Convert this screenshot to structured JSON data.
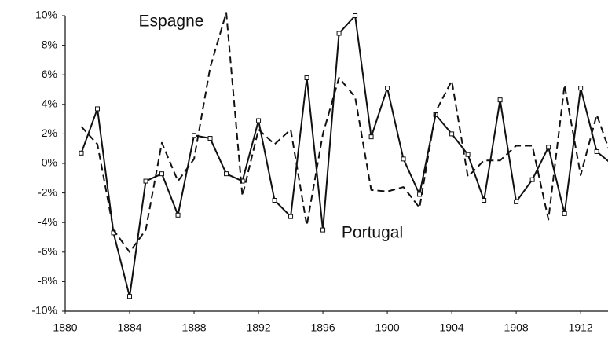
{
  "chart_data": {
    "type": "line",
    "annotations": [
      "Espagne",
      "Portugal"
    ],
    "x": [
      1881,
      1882,
      1883,
      1884,
      1885,
      1886,
      1887,
      1888,
      1889,
      1890,
      1891,
      1892,
      1893,
      1894,
      1895,
      1896,
      1897,
      1898,
      1899,
      1900,
      1901,
      1902,
      1903,
      1904,
      1905,
      1906,
      1907,
      1908,
      1909,
      1910,
      1911,
      1912,
      1913,
      1914
    ],
    "series": [
      {
        "name": "Portugal",
        "color": "#111111",
        "dashed": false,
        "markers": true,
        "values": [
          0.7,
          3.7,
          -4.7,
          -9,
          -1.2,
          -0.7,
          -3.5,
          1.9,
          1.7,
          -0.7,
          -1.2,
          2.9,
          -2.5,
          -3.6,
          5.8,
          -4.5,
          8.8,
          10,
          1.8,
          5.1,
          0.3,
          -2.1,
          3.3,
          2,
          0.6,
          -2.5,
          4.3,
          -2.6,
          -1.1,
          1.1,
          -3.4,
          5.1,
          0.8,
          -0.1
        ]
      },
      {
        "name": "Espagne",
        "color": "#111111",
        "dashed": true,
        "markers": false,
        "values": [
          2.5,
          1.3,
          -4.5,
          -6,
          -4.5,
          1.4,
          -1.2,
          0.3,
          6.5,
          10.2,
          -2.2,
          2.3,
          1.3,
          2.3,
          -4.2,
          2,
          5.8,
          4.5,
          -1.8,
          -1.9,
          -1.6,
          -3,
          3.5,
          5.6,
          -0.9,
          0.2,
          0.2,
          1.2,
          1.2,
          -3.8,
          5.3,
          -0.8,
          3.3,
          0.2
        ]
      }
    ],
    "xlim": [
      1880,
      1913.7
    ],
    "xticks": [
      1880,
      1884,
      1888,
      1892,
      1896,
      1900,
      1904,
      1908,
      1912
    ],
    "ylim": [
      -10,
      10
    ],
    "yticks": [
      {
        "value": -10,
        "label": "-10%"
      },
      {
        "value": -8,
        "label": "-8%"
      },
      {
        "value": -6,
        "label": "-6%"
      },
      {
        "value": -4,
        "label": "-4%"
      },
      {
        "value": -2,
        "label": "-2%"
      },
      {
        "value": 0,
        "label": "0%"
      },
      {
        "value": 2,
        "label": "2%"
      },
      {
        "value": 4,
        "label": "4%"
      },
      {
        "value": 6,
        "label": "6%"
      },
      {
        "value": 8,
        "label": "8%"
      },
      {
        "value": 10,
        "label": "10%"
      }
    ],
    "grid": false
  }
}
